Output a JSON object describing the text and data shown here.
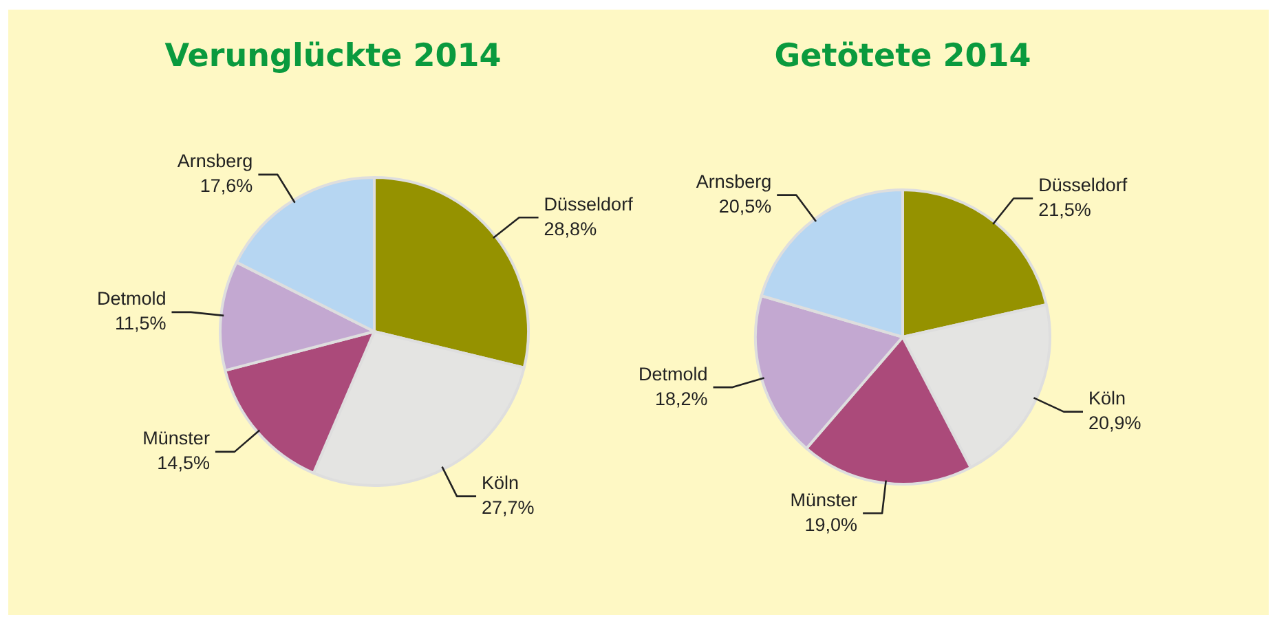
{
  "chart_data": [
    {
      "type": "pie",
      "title": "Verunglückte 2014",
      "categories": [
        "Düsseldorf",
        "Köln",
        "Münster",
        "Detmold",
        "Arnsberg"
      ],
      "values": [
        28.8,
        27.7,
        14.5,
        11.5,
        17.6
      ],
      "value_labels": [
        "28,8%",
        "27,7%",
        "14,5%",
        "11,5%",
        "17,6%"
      ],
      "colors": [
        "#959200",
        "#e4e4e2",
        "#ab4a7a",
        "#c3a8d1",
        "#b6d6f2"
      ],
      "legend": false
    },
    {
      "type": "pie",
      "title": "Getötete 2014",
      "categories": [
        "Düsseldorf",
        "Köln",
        "Münster",
        "Detmold",
        "Arnsberg"
      ],
      "values": [
        21.5,
        20.9,
        19.0,
        18.2,
        20.5
      ],
      "value_labels": [
        "21,5%",
        "20,9%",
        "19,0%",
        "18,2%",
        "20,5%"
      ],
      "colors": [
        "#959200",
        "#e4e4e2",
        "#ab4a7a",
        "#c3a8d1",
        "#b6d6f2"
      ],
      "legend": false
    }
  ]
}
